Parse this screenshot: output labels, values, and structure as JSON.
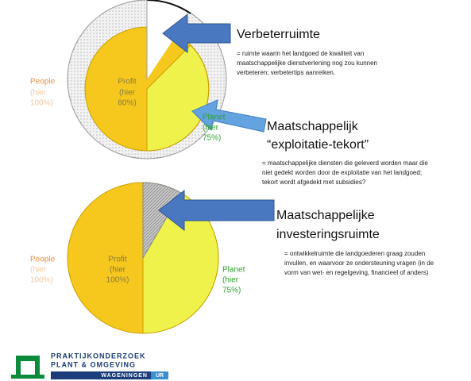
{
  "top_diagram": {
    "people": {
      "name": "People",
      "note1": "(hier",
      "note2": "100%)"
    },
    "profit": {
      "name": "Profit",
      "note1": "(hier",
      "note2": "80%)"
    },
    "planet": {
      "name": "Planet",
      "note1": "(hier",
      "note2": "75%)"
    },
    "callout1": {
      "title": "Verbeterruimte",
      "lines": [
        "= ruimte waarin het landgoed de kwaliteit van",
        "maatschappelijke dienstverlening nog zou kunnen",
        "verbeteren;   verbetertips aanreiken."
      ]
    },
    "callout2": {
      "title1": "Maatschappelijk",
      "title2": "“exploitatie-tekort”",
      "lines": [
        "= maatschappelijke diensten die geleverd worden maar die",
        "niet gedekt worden door de exploitatie van het landgoed;",
        "tekort wordt afgedekt met subsidies?"
      ]
    }
  },
  "bottom_diagram": {
    "people": {
      "name": "People",
      "note1": "(hier",
      "note2": "100%)"
    },
    "profit": {
      "name": "Profit",
      "note1": "(hier",
      "note2": "100%)"
    },
    "planet": {
      "name": "Planet",
      "note1": "(hier",
      "note2": "75%)"
    },
    "callout": {
      "title1": "Maatschappelijke",
      "title2": "investeringsruimte",
      "lines": [
        "= ontwikkelruimte die landgoederen graag zouden",
        "invullen, en waarvoor ze  ondersteuning  vragen (in de",
        "vorm van  wet- en regelgeving, financieel of anders)"
      ]
    }
  },
  "logo": {
    "line1": "PRAKTIJKONDERZOEK",
    "line2": "PLANT & OMGEVING",
    "line3": "WAGENINGEN",
    "line4": "UR"
  }
}
